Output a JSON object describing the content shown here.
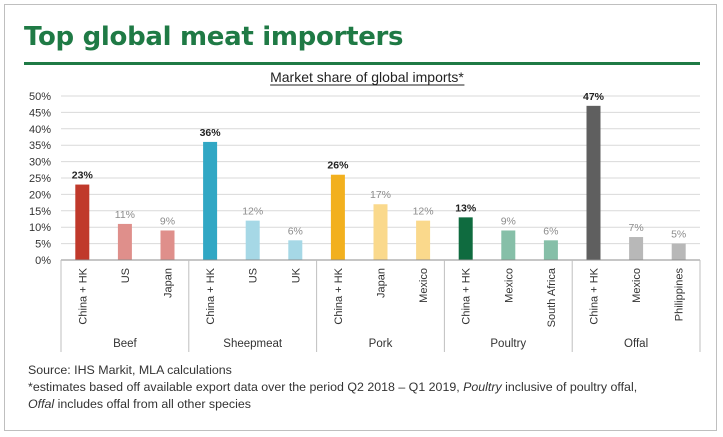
{
  "header": {
    "title": "Top global meat importers"
  },
  "colors": {
    "title_green": "#1f7a45",
    "axis": "#8c8c8c",
    "grid": "#d9d9d9"
  },
  "chart_data": {
    "type": "bar",
    "title": "Market share of global imports*",
    "ylabel": "",
    "xlabel": "",
    "ylim": [
      0,
      50
    ],
    "yticks": [
      0,
      5,
      10,
      15,
      20,
      25,
      30,
      35,
      40,
      45,
      50
    ],
    "ytick_labels": [
      "0%",
      "5%",
      "10%",
      "15%",
      "20%",
      "25%",
      "30%",
      "35%",
      "40%",
      "45%",
      "50%"
    ],
    "groups": [
      {
        "name": "Beef",
        "bars": [
          {
            "category": "China + HK",
            "value": 23,
            "label": "23%",
            "bold": true,
            "color": "#c0392b"
          },
          {
            "category": "US",
            "value": 11,
            "label": "11%",
            "bold": false,
            "color": "#df8f8b"
          },
          {
            "category": "Japan",
            "value": 9,
            "label": "9%",
            "bold": false,
            "color": "#df8f8b"
          }
        ]
      },
      {
        "name": "Sheepmeat",
        "bars": [
          {
            "category": "China + HK",
            "value": 36,
            "label": "36%",
            "bold": true,
            "color": "#31a7c4"
          },
          {
            "category": "US",
            "value": 12,
            "label": "12%",
            "bold": false,
            "color": "#a6d8e6"
          },
          {
            "category": "UK",
            "value": 6,
            "label": "6%",
            "bold": false,
            "color": "#a6d8e6"
          }
        ]
      },
      {
        "name": "Pork",
        "bars": [
          {
            "category": "China + HK",
            "value": 26,
            "label": "26%",
            "bold": true,
            "color": "#f2b01e"
          },
          {
            "category": "Japan",
            "value": 17,
            "label": "17%",
            "bold": false,
            "color": "#fad98c"
          },
          {
            "category": "Mexico",
            "value": 12,
            "label": "12%",
            "bold": false,
            "color": "#fad98c"
          }
        ]
      },
      {
        "name": "Poultry",
        "bars": [
          {
            "category": "China + HK",
            "value": 13,
            "label": "13%",
            "bold": true,
            "color": "#0f6b3f"
          },
          {
            "category": "Mexico",
            "value": 9,
            "label": "9%",
            "bold": false,
            "color": "#86bfa8"
          },
          {
            "category": "South Africa",
            "value": 6,
            "label": "6%",
            "bold": false,
            "color": "#86bfa8"
          }
        ]
      },
      {
        "name": "Offal",
        "bars": [
          {
            "category": "China + HK",
            "value": 47,
            "label": "47%",
            "bold": true,
            "color": "#5f5f5f"
          },
          {
            "category": "Mexico",
            "value": 7,
            "label": "7%",
            "bold": false,
            "color": "#b8b8b8"
          },
          {
            "category": "Philippines",
            "value": 5,
            "label": "5%",
            "bold": false,
            "color": "#b8b8b8"
          }
        ]
      }
    ]
  },
  "footer": {
    "source": "Source: IHS Markit, MLA calculations",
    "note_part1": "*estimates based off available export data over the period Q2 2018 – Q1 2019, ",
    "note_poultry": "Poultry",
    "note_part2": " inclusive of poultry offal,",
    "note_offal": "Offal",
    "note_part3": " includes offal from all other species"
  }
}
